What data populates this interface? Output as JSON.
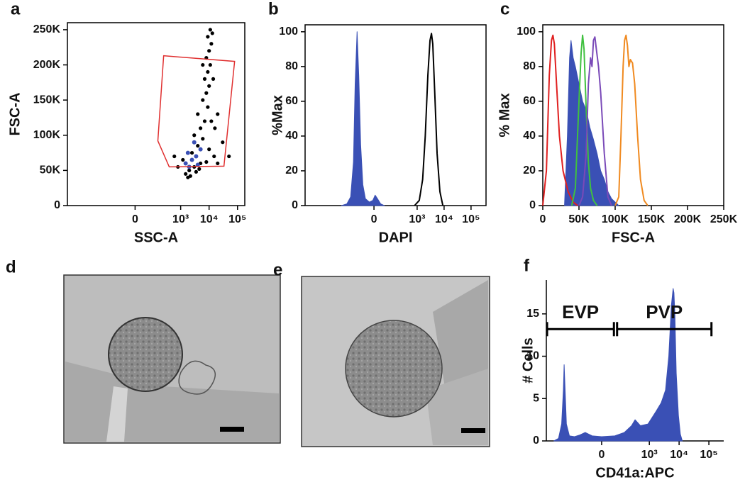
{
  "chart_data": [
    {
      "type": "scatter",
      "panel": "a",
      "xlabel": "SSC-A",
      "ylabel": "FSC-A",
      "xscale": "biexponential",
      "frame": true,
      "xlim": [
        -6000,
        180000
      ],
      "ylim": [
        0,
        260000
      ],
      "xticks": [
        {
          "value": 0,
          "label": "0"
        },
        {
          "value": 1000,
          "label": "10³"
        },
        {
          "value": 10000,
          "label": "10⁴"
        },
        {
          "value": 100000,
          "label": "10⁵"
        }
      ],
      "yticks": [
        0,
        {
          "value": 50000,
          "label": "50K"
        },
        {
          "value": 100000,
          "label": "100K"
        },
        {
          "value": 150000,
          "label": "150K"
        },
        {
          "value": 200000,
          "label": "200K"
        },
        {
          "value": 250000,
          "label": "250K"
        }
      ],
      "series": [
        {
          "color": "#000000",
          "x": [
            1500,
            2000,
            3000,
            5000,
            8000,
            1200,
            2500,
            4000,
            6000,
            10000,
            15000,
            3000,
            5000,
            7000,
            9000,
            6000,
            8000,
            10000,
            7000,
            9000,
            11000,
            8000,
            10000,
            12000,
            9000,
            11000,
            13000,
            20000,
            30000,
            50000,
            800,
            600,
            20000,
            4000,
            6000,
            14000,
            1800,
            2200,
            3500,
            4500,
            12000,
            16000
          ],
          "values": [
            45000,
            50000,
            55000,
            60000,
            62000,
            65000,
            75000,
            85000,
            95000,
            80000,
            70000,
            100000,
            110000,
            120000,
            140000,
            150000,
            160000,
            170000,
            180000,
            190000,
            200000,
            210000,
            220000,
            230000,
            240000,
            250000,
            245000,
            130000,
            90000,
            70000,
            55000,
            70000,
            60000,
            130000,
            200000,
            180000,
            40000,
            42000,
            48000,
            52000,
            120000,
            110000
          ]
        },
        {
          "color": "#3a50b5",
          "x": [
            1500,
            2500,
            3500,
            5000,
            2000,
            3000,
            4000,
            1800
          ],
          "values": [
            60000,
            65000,
            70000,
            80000,
            55000,
            90000,
            58000,
            75000
          ]
        }
      ],
      "gate": {
        "color": "#e03030",
        "x": [
          250,
          79000,
          33300,
          395,
          154
        ],
        "y": [
          213000,
          205000,
          56000,
          55000,
          92000
        ]
      }
    },
    {
      "type": "line",
      "panel": "b",
      "xlabel": "DAPI",
      "ylabel": "%Max",
      "xscale": "biexponential",
      "frame": true,
      "xlim": [
        -9000,
        360000
      ],
      "ylim": [
        0,
        104
      ],
      "xticks": [
        {
          "value": 0,
          "label": "0"
        },
        {
          "value": 1000,
          "label": "10³"
        },
        {
          "value": 10000,
          "label": "10⁴"
        },
        {
          "value": 100000,
          "label": "10⁵"
        }
      ],
      "yticks": [
        0,
        20,
        40,
        60,
        80,
        100
      ],
      "series": [
        {
          "color": "#3a50b5",
          "filled": true,
          "x": [
            -400,
            -250,
            -180,
            -140,
            -120,
            -100,
            -85,
            -70,
            -55,
            -40,
            -20,
            -5,
            5,
            15,
            30,
            50
          ],
          "values": [
            0,
            1,
            5,
            25,
            70,
            100,
            75,
            35,
            12,
            4,
            2,
            3,
            6,
            4,
            1,
            0
          ]
        },
        {
          "color": "#000000",
          "filled": false,
          "x": [
            800,
            1200,
            1600,
            2000,
            2500,
            3000,
            3400,
            3800,
            4500,
            5500,
            7000,
            9000
          ],
          "values": [
            0,
            3,
            15,
            40,
            75,
            95,
            99,
            93,
            65,
            30,
            8,
            0
          ]
        }
      ]
    },
    {
      "type": "line",
      "panel": "c",
      "xlabel": "FSC-A",
      "ylabel": "% Max",
      "frame": true,
      "xlim": [
        0,
        250000
      ],
      "ylim": [
        0,
        104
      ],
      "xticks": [
        0,
        {
          "value": 50000,
          "label": "50K"
        },
        {
          "value": 100000,
          "label": "100K"
        },
        {
          "value": 150000,
          "label": "150K"
        },
        {
          "value": 200000,
          "label": "200K"
        },
        {
          "value": 250000,
          "label": "250K"
        }
      ],
      "yticks": [
        0,
        20,
        40,
        60,
        80,
        100
      ],
      "series": [
        {
          "color": "#3a50b5",
          "filled": true,
          "x": [
            30000,
            34000,
            37000,
            39000,
            42000,
            45000,
            50000,
            55000,
            60000,
            65000,
            70000,
            75000,
            80000,
            85000,
            90000,
            95000,
            100000,
            105000
          ],
          "values": [
            0,
            40,
            85,
            95,
            85,
            80,
            70,
            60,
            55,
            45,
            38,
            30,
            20,
            15,
            8,
            4,
            2,
            0
          ]
        },
        {
          "color": "#e02020",
          "filled": false,
          "x": [
            0,
            5000,
            9000,
            12000,
            14000,
            16000,
            19000,
            23000,
            28000,
            35000,
            42000,
            48000
          ],
          "values": [
            0,
            20,
            75,
            95,
            98,
            93,
            70,
            40,
            20,
            8,
            2,
            0
          ]
        },
        {
          "color": "#40c040",
          "filled": false,
          "x": [
            40000,
            45000,
            50000,
            53000,
            55000,
            57000,
            60000,
            63000,
            66000,
            70000,
            75000
          ],
          "values": [
            0,
            10,
            60,
            88,
            98,
            90,
            55,
            25,
            10,
            3,
            0
          ]
        },
        {
          "color": "#7a4ab8",
          "filled": false,
          "x": [
            50000,
            55000,
            60000,
            63000,
            66000,
            68000,
            70000,
            72000,
            74000,
            77000,
            80000,
            85000,
            90000,
            95000
          ],
          "values": [
            0,
            5,
            30,
            70,
            85,
            80,
            95,
            97,
            90,
            80,
            65,
            30,
            5,
            0
          ]
        },
        {
          "color": "#f08a20",
          "filled": false,
          "x": [
            100000,
            105000,
            108000,
            111000,
            113000,
            115000,
            117000,
            119000,
            121000,
            124000,
            127000,
            131000,
            135000,
            140000,
            145000
          ],
          "values": [
            0,
            5,
            40,
            80,
            95,
            98,
            92,
            80,
            84,
            82,
            70,
            40,
            15,
            3,
            0
          ]
        }
      ]
    },
    {
      "type": "line",
      "panel": "f",
      "xlabel": "CD41a:APC",
      "ylabel": "# Cells",
      "xscale": "biexponential",
      "frame": false,
      "xlim": [
        -1800,
        315000
      ],
      "ylim": [
        0,
        19
      ],
      "xticks": [
        {
          "value": 0,
          "label": "0"
        },
        {
          "value": 1000,
          "label": "10³"
        },
        {
          "value": 10000,
          "label": "10⁴"
        },
        {
          "value": 100000,
          "label": "10⁵"
        }
      ],
      "yticks": [
        0,
        5,
        10,
        15
      ],
      "series": [
        {
          "color": "#3a50b5",
          "filled": true,
          "x": [
            -1000,
            -700,
            -550,
            -480,
            -453,
            -420,
            -380,
            -300,
            -200,
            -130,
            -82,
            -40,
            0,
            60,
            140,
            250,
            330,
            500,
            900,
            1690,
            2500,
            3500,
            4500,
            5500,
            6300,
            6700,
            7200,
            8000,
            9500,
            11000,
            12800
          ],
          "values": [
            0,
            0.3,
            2,
            6,
            9,
            6,
            2,
            0.6,
            0.5,
            0.7,
            1,
            0.6,
            0.5,
            0.6,
            1,
            1.8,
            2.5,
            1.8,
            2,
            3.5,
            4.5,
            6,
            10,
            16,
            18,
            17.5,
            15,
            8,
            3,
            0.8,
            0
          ]
        }
      ],
      "gates": [
        {
          "label": "EVP",
          "range": [
            -1700,
            55
          ],
          "level": 13.2
        },
        {
          "label": "PVP",
          "range": [
            75,
            122000
          ],
          "level": 13.2
        }
      ]
    }
  ],
  "image_panels": [
    {
      "label": "d"
    },
    {
      "label": "e"
    }
  ]
}
